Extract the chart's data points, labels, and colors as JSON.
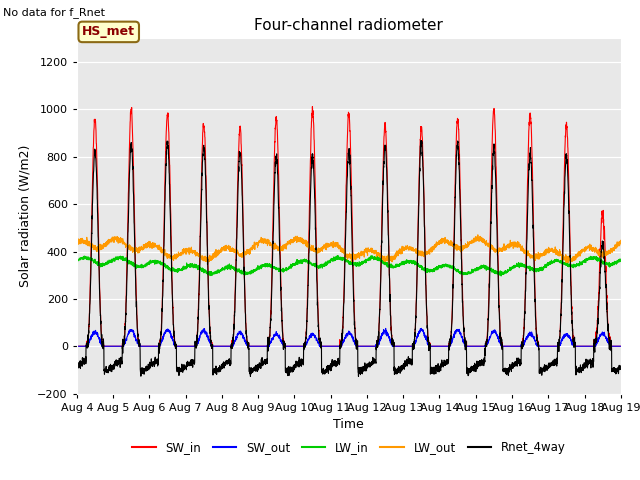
{
  "title": "Four-channel radiometer",
  "subtitle": "No data for f_Rnet",
  "xlabel": "Time",
  "ylabel": "Solar radiation (W/m2)",
  "ylim": [
    -200,
    1300
  ],
  "yticks": [
    -200,
    0,
    200,
    400,
    600,
    800,
    1000,
    1200
  ],
  "xlim_start_day": 4,
  "xlim_end_day": 19,
  "xtick_days": [
    4,
    5,
    6,
    7,
    8,
    9,
    10,
    11,
    12,
    13,
    14,
    15,
    16,
    17,
    18,
    19
  ],
  "xtick_labels": [
    "Aug 4",
    "Aug 5",
    "Aug 6",
    "Aug 7",
    "Aug 8",
    "Aug 9",
    "Aug 10",
    "Aug 11",
    "Aug 12",
    "Aug 13",
    "Aug 14",
    "Aug 15",
    "Aug 16",
    "Aug 17",
    "Aug 18",
    "Aug 19"
  ],
  "legend_label_box": "HS_met",
  "colors": {
    "SW_in": "#ff0000",
    "SW_out": "#0000ff",
    "LW_in": "#00cc00",
    "LW_out": "#ff9900",
    "Rnet_4way": "#000000"
  },
  "plot_bg_color": "#e8e8e8",
  "n_days": 15,
  "start_day": 4
}
